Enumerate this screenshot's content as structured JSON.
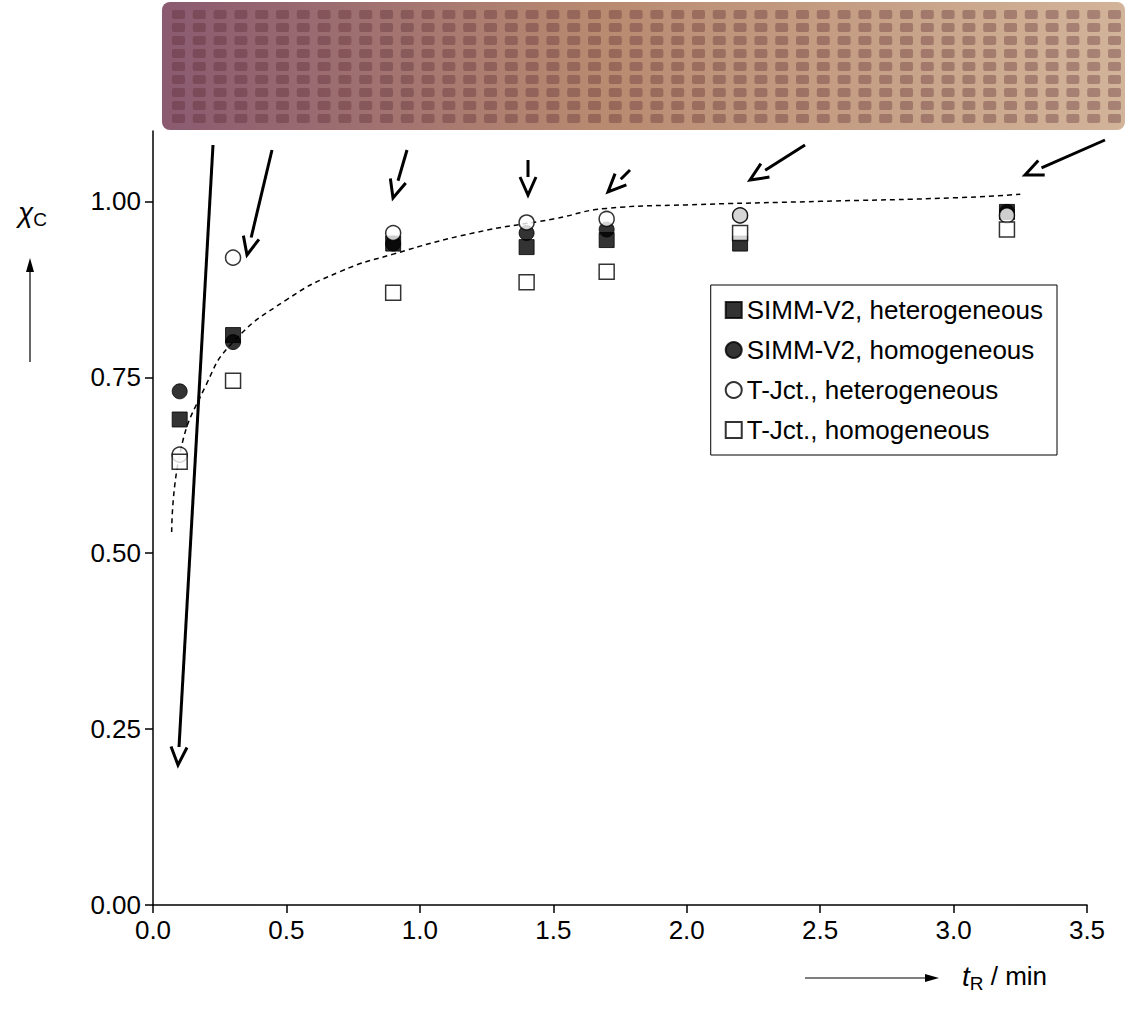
{
  "chart_data": {
    "type": "scatter",
    "xlabel": "tR / min",
    "ylabel": "χC",
    "x": [
      0.1,
      0.3,
      0.9,
      1.4,
      1.7,
      2.2,
      3.2
    ],
    "series": [
      {
        "name": "SIMM-V2, heterogeneous",
        "color": "#000000",
        "marker": "square",
        "values": [
          0.69,
          0.81,
          0.94,
          0.935,
          0.945,
          0.94,
          0.985
        ]
      },
      {
        "name": "SIMM-V2, homogeneous",
        "color": "#000000",
        "marker": "circle",
        "values": [
          0.73,
          0.8,
          0.94,
          0.955,
          0.96,
          0.98,
          0.985
        ]
      },
      {
        "name": "T-Jct., heterogeneous",
        "color": "#000000",
        "marker": "open-circle",
        "values": [
          0.64,
          0.92,
          0.955,
          0.97,
          0.975,
          0.98,
          0.98
        ]
      },
      {
        "name": "T-Jct., homogeneous",
        "color": "#000000",
        "marker": "open-square",
        "values": [
          0.63,
          0.745,
          0.87,
          0.885,
          0.9,
          0.955,
          0.96
        ]
      },
      {
        "type": "line",
        "line_style": "dashed",
        "color": "#000000",
        "x": [
          0.07,
          0.1,
          0.2,
          0.3,
          0.5,
          0.7,
          0.9,
          1.2,
          1.5,
          1.7,
          2.0,
          2.5,
          3.0,
          3.25
        ],
        "values": [
          0.53,
          0.64,
          0.74,
          0.8,
          0.86,
          0.9,
          0.925,
          0.955,
          0.975,
          0.99,
          0.995,
          1.0,
          1.005,
          1.01
        ]
      }
    ],
    "xlim": [
      0,
      3.5
    ],
    "xticks": [
      {
        "value": 0,
        "label": "0.0"
      },
      0.5,
      {
        "value": 1,
        "label": "1.0"
      },
      1.5,
      {
        "value": 2,
        "label": "2.0"
      },
      2.5,
      {
        "value": 3,
        "label": "3.0"
      },
      3.5
    ],
    "ylim": [
      0,
      1.1
    ],
    "yticks": [
      {
        "value": 0,
        "label": "0.00"
      },
      0.25,
      {
        "value": 0.5,
        "label": "0.50"
      },
      0.75,
      {
        "value": 1,
        "label": "1.00"
      }
    ],
    "grid": false,
    "legend": "top-right"
  }
}
